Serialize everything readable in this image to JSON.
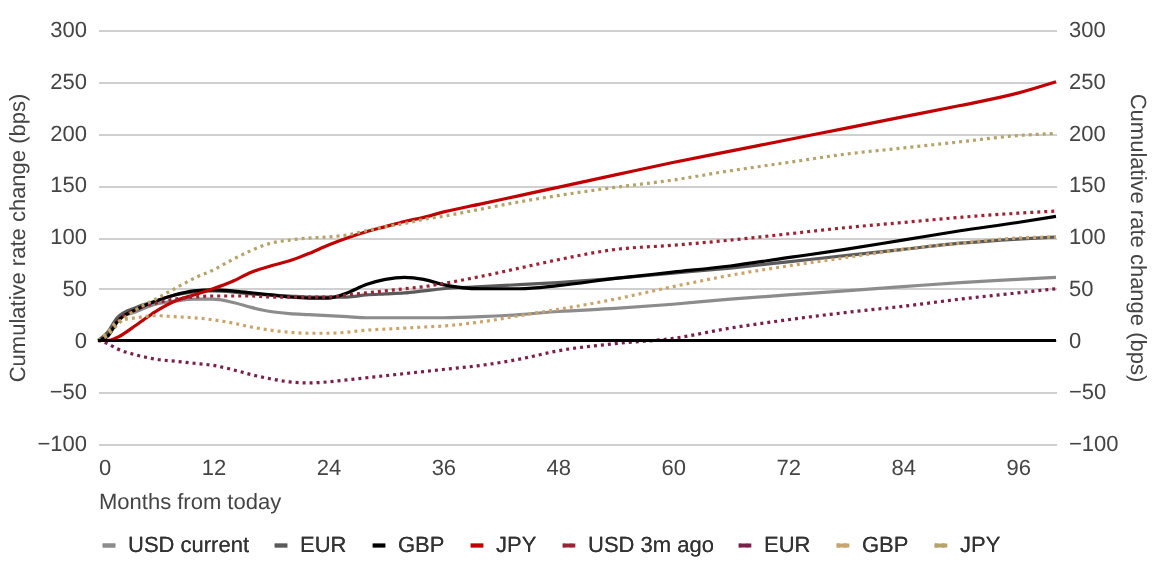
{
  "chart_data": {
    "type": "line",
    "xlabel": "Months from today",
    "ylabel": "Cumulative rate change (bps)",
    "y2label": "Cumulative rate change (bps)",
    "x": [
      0,
      1,
      2,
      4,
      6,
      8,
      10,
      12,
      14,
      16,
      18,
      20,
      22,
      24,
      26,
      28,
      30,
      32,
      34,
      36,
      40,
      44,
      48,
      54,
      60,
      66,
      72,
      78,
      84,
      90,
      96,
      100
    ],
    "xlim": [
      0,
      100
    ],
    "xticks": [
      0,
      12,
      24,
      36,
      48,
      60,
      72,
      84,
      96
    ],
    "ylim": [
      -100,
      300
    ],
    "yticks": [
      -100,
      -50,
      0,
      50,
      100,
      150,
      200,
      250,
      300
    ],
    "y2lim": [
      -100,
      300
    ],
    "y2ticks": [
      -100,
      -50,
      0,
      50,
      100,
      150,
      200,
      250,
      300
    ],
    "grid": "y",
    "legend": "bottom",
    "ref_lines": [
      {
        "axis": "y2",
        "value": 0,
        "color": "#000000"
      }
    ],
    "series": [
      {
        "name": "USD current",
        "color": "#8c8c8c",
        "line_style": "solid",
        "values": [
          0,
          5,
          20,
          28,
          35,
          38,
          40,
          40,
          37,
          32,
          28,
          26,
          25,
          24,
          23,
          22,
          22,
          22,
          22,
          22,
          23,
          25,
          28,
          31,
          35,
          40,
          44,
          48,
          52,
          56,
          59,
          61
        ]
      },
      {
        "name": "EUR",
        "color": "#5a5a5a",
        "line_style": "solid",
        "values": [
          0,
          8,
          22,
          32,
          38,
          44,
          47,
          48,
          47,
          45,
          44,
          43,
          42,
          42,
          42,
          44,
          45,
          46,
          48,
          50,
          52,
          54,
          56,
          60,
          65,
          70,
          76,
          82,
          88,
          94,
          98,
          100
        ]
      },
      {
        "name": "GBP",
        "color": "#000000",
        "line_style": "solid",
        "values": [
          0,
          4,
          18,
          30,
          38,
          44,
          48,
          49,
          48,
          46,
          44,
          42,
          41,
          41,
          46,
          54,
          59,
          61,
          59,
          54,
          50,
          50,
          53,
          60,
          66,
          72,
          80,
          88,
          97,
          106,
          114,
          120
        ]
      },
      {
        "name": "JPY",
        "color": "#c00000",
        "line_style": "solid",
        "values": [
          0,
          0,
          3,
          15,
          28,
          38,
          44,
          50,
          57,
          66,
          72,
          77,
          84,
          92,
          99,
          105,
          110,
          115,
          119,
          124,
          132,
          140,
          148,
          160,
          172,
          183,
          194,
          205,
          216,
          227,
          239,
          250
        ]
      },
      {
        "name": "USD 3m ago",
        "color": "#9b2335",
        "line_style": "dotted",
        "values": [
          0,
          5,
          18,
          30,
          36,
          40,
          42,
          43,
          43,
          43,
          42,
          42,
          42,
          42,
          44,
          46,
          48,
          50,
          52,
          55,
          62,
          70,
          78,
          88,
          92,
          97,
          103,
          109,
          114,
          119,
          123,
          125
        ]
      },
      {
        "name": "EUR",
        "color": "#7a1f4a",
        "line_style": "dotted",
        "values": [
          0,
          -3,
          -8,
          -14,
          -18,
          -20,
          -22,
          -24,
          -28,
          -33,
          -37,
          -40,
          -41,
          -40,
          -38,
          -36,
          -34,
          -32,
          -30,
          -28,
          -24,
          -18,
          -10,
          -3,
          2,
          12,
          20,
          27,
          33,
          40,
          46,
          50
        ]
      },
      {
        "name": "GBP",
        "color": "#c9a56b",
        "line_style": "dotted",
        "values": [
          0,
          8,
          18,
          22,
          24,
          23,
          22,
          20,
          17,
          13,
          10,
          8,
          7,
          7,
          8,
          10,
          11,
          12,
          13,
          14,
          18,
          24,
          30,
          40,
          52,
          63,
          72,
          80,
          88,
          94,
          99,
          100
        ]
      },
      {
        "name": "JPY",
        "color": "#b5a36a",
        "line_style": "dotted",
        "values": [
          0,
          5,
          15,
          30,
          40,
          50,
          60,
          68,
          78,
          87,
          94,
          97,
          99,
          100,
          102,
          106,
          110,
          113,
          117,
          120,
          127,
          134,
          140,
          148,
          155,
          164,
          172,
          180,
          186,
          192,
          198,
          200
        ]
      }
    ]
  }
}
